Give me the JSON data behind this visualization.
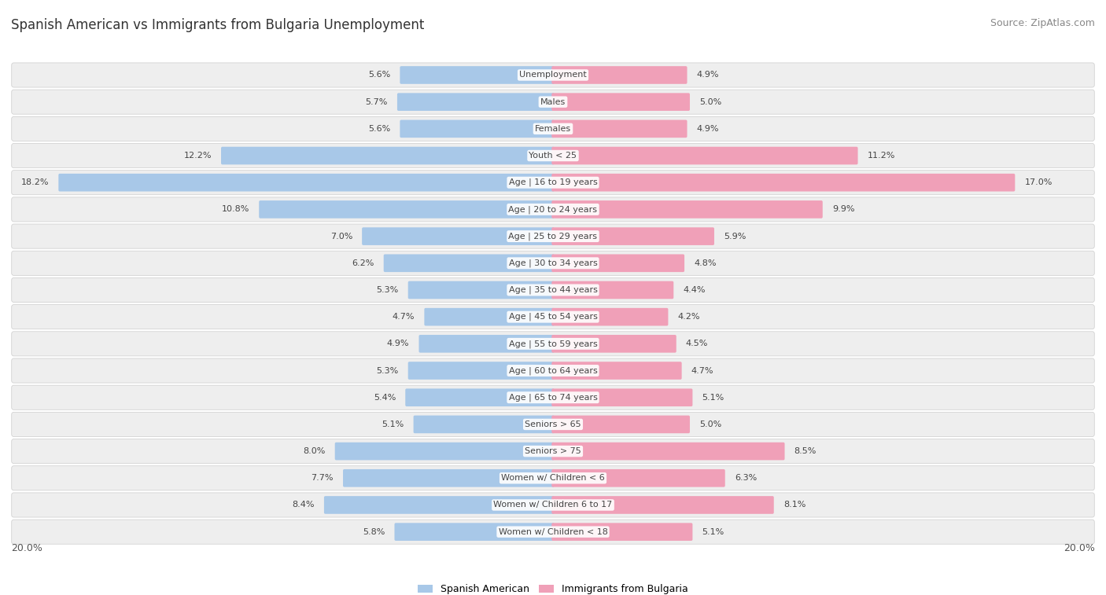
{
  "title": "Spanish American vs Immigrants from Bulgaria Unemployment",
  "source": "Source: ZipAtlas.com",
  "categories": [
    "Unemployment",
    "Males",
    "Females",
    "Youth < 25",
    "Age | 16 to 19 years",
    "Age | 20 to 24 years",
    "Age | 25 to 29 years",
    "Age | 30 to 34 years",
    "Age | 35 to 44 years",
    "Age | 45 to 54 years",
    "Age | 55 to 59 years",
    "Age | 60 to 64 years",
    "Age | 65 to 74 years",
    "Seniors > 65",
    "Seniors > 75",
    "Women w/ Children < 6",
    "Women w/ Children 6 to 17",
    "Women w/ Children < 18"
  ],
  "spanish_american": [
    5.6,
    5.7,
    5.6,
    12.2,
    18.2,
    10.8,
    7.0,
    6.2,
    5.3,
    4.7,
    4.9,
    5.3,
    5.4,
    5.1,
    8.0,
    7.7,
    8.4,
    5.8
  ],
  "bulgaria": [
    4.9,
    5.0,
    4.9,
    11.2,
    17.0,
    9.9,
    5.9,
    4.8,
    4.4,
    4.2,
    4.5,
    4.7,
    5.1,
    5.0,
    8.5,
    6.3,
    8.1,
    5.1
  ],
  "spanish_color": "#a8c8e8",
  "bulgaria_color": "#f0a0b8",
  "bg_row_odd": "#f0f0f0",
  "bg_row_even": "#e8e8e8",
  "row_bg_color": "#eeeeee",
  "axis_limit": 20.0,
  "legend_spanish": "Spanish American",
  "legend_bulgaria": "Immigrants from Bulgaria",
  "title_fontsize": 12,
  "source_fontsize": 9,
  "label_fontsize": 8,
  "value_fontsize": 8,
  "axis_label_fontsize": 9
}
